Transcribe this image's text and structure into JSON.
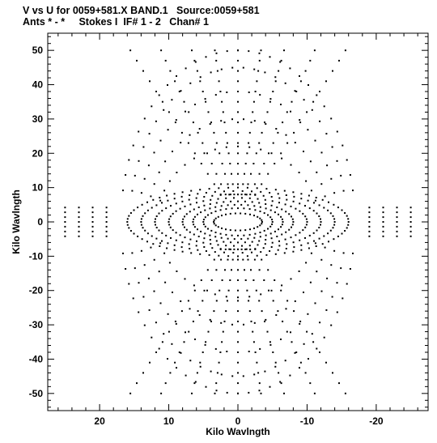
{
  "header": {
    "line1": "V vs U for 0059+581.X BAND.1   Source:0059+581",
    "line2": "Ants * - *     Stokes I  IF# 1 - 2   Chan# 1"
  },
  "chart_data": {
    "type": "scatter",
    "xlabel": "Kilo Wavlngth",
    "ylabel": "Kilo Wavlngth",
    "xlim": [
      27.5,
      -27.5
    ],
    "ylim": [
      -55,
      55
    ],
    "x_ticks": [
      20,
      10,
      0,
      -10,
      -20
    ],
    "y_ticks": [
      50,
      40,
      30,
      20,
      10,
      0,
      -10,
      -20,
      -30,
      -40,
      -50
    ],
    "grid": false,
    "marker_color": "#000000",
    "pattern": {
      "description": "uv-coverage of symmetric elliptical tracks",
      "inner_tracks": [
        {
          "a": 3.5,
          "b": 2.5
        },
        {
          "a": 5,
          "b": 4
        },
        {
          "a": 6.5,
          "b": 5
        },
        {
          "a": 8,
          "b": 6
        },
        {
          "a": 10,
          "b": 7
        },
        {
          "a": 12,
          "b": 8
        },
        {
          "a": 14,
          "b": 9
        },
        {
          "a": 16,
          "b": 10
        }
      ],
      "outer_tracks": [
        {
          "a": 18,
          "b": 22
        },
        {
          "a": 20,
          "b": 30
        },
        {
          "a": 22,
          "b": 38
        },
        {
          "a": 24,
          "b": 45
        },
        {
          "a": 26,
          "b": 50
        }
      ]
    }
  }
}
